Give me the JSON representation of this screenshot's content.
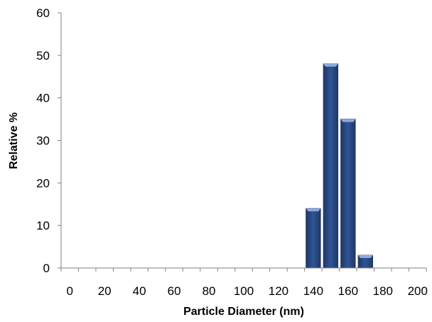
{
  "chart_data": {
    "type": "bar",
    "title": "",
    "xlabel": "Particle Diameter (nm)",
    "ylabel": "Relative %",
    "x": [
      0,
      10,
      20,
      30,
      40,
      50,
      60,
      70,
      80,
      90,
      100,
      110,
      120,
      130,
      140,
      150,
      160,
      170,
      180,
      190,
      200
    ],
    "values": [
      0,
      0,
      0,
      0,
      0,
      0,
      0,
      0,
      0,
      0,
      0,
      0,
      0,
      0,
      14,
      48,
      35,
      3,
      0,
      0,
      0
    ],
    "x_tick_labels": [
      "0",
      "20",
      "40",
      "60",
      "80",
      "100",
      "120",
      "140",
      "160",
      "180",
      "200"
    ],
    "y_tick_labels": [
      "0",
      "10",
      "20",
      "30",
      "40",
      "50",
      "60"
    ],
    "ylim": [
      0,
      60
    ],
    "grid": false,
    "legend": "none",
    "colors": {
      "bar_fill": "#2f5597",
      "bar_dark": "#1f3864",
      "bar_light": "#8faadc",
      "axis": "#808080"
    }
  }
}
